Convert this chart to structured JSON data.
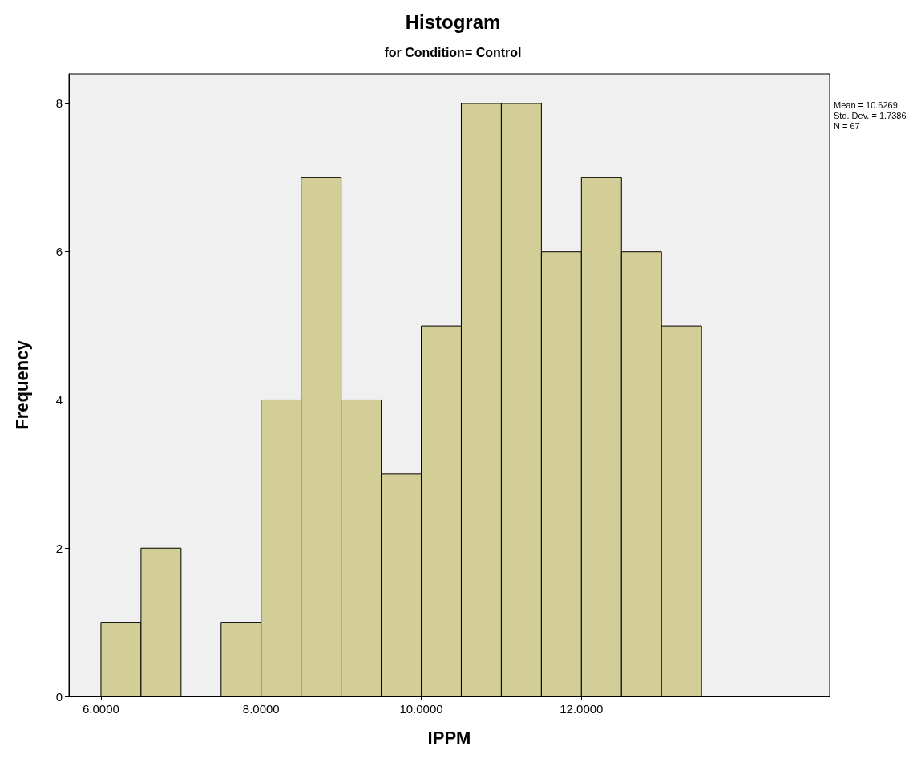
{
  "chart_data": {
    "type": "histogram",
    "title": "Histogram",
    "subtitle": "for Condition= Control",
    "xlabel": "IPPM",
    "ylabel": "Frequency",
    "bins": [
      6.0,
      6.5,
      7.0,
      7.5,
      8.0,
      8.5,
      9.0,
      9.5,
      10.0,
      10.5,
      11.0,
      11.5,
      12.0,
      12.5,
      13.0,
      13.5
    ],
    "values": [
      1,
      2,
      0,
      1,
      4,
      7,
      4,
      3,
      5,
      8,
      8,
      6,
      7,
      6,
      5
    ],
    "color": "#d3ce98",
    "xlim": [
      5.6,
      15.1
    ],
    "xticks": [
      {
        "value": 6,
        "label": "6.0000"
      },
      {
        "value": 8,
        "label": "8.0000"
      },
      {
        "value": 10,
        "label": "10.0000"
      },
      {
        "value": 12,
        "label": "12.0000"
      }
    ],
    "ylim": [
      0,
      8.4
    ],
    "yticks": [
      0,
      2,
      4,
      6,
      8
    ],
    "annotations": [
      "Mean = 10.6269",
      "Std. Dev. = 1.7386",
      "N = 67"
    ],
    "grid": false
  }
}
